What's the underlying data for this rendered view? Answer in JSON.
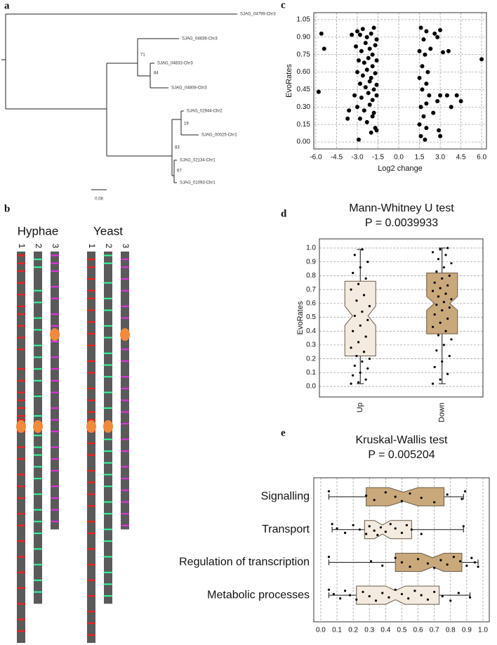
{
  "tree": {
    "label": "a",
    "leaves": [
      "SJAG_04799-Chr3",
      "SJAG_04836-Chr3",
      "SJAG_04833-Chr3",
      "SJAG_04808-Chr3",
      "SJAG_02944-Chr2",
      "SJAG_00025-Chr1",
      "SJAG_02134-Chr1",
      "SJAG_01093-Chr1"
    ],
    "bootstraps": [
      71,
      84,
      19,
      83,
      67
    ],
    "scale_label": "0.08"
  },
  "chromosomes": {
    "label": "b",
    "groups": [
      {
        "name": "Hyphae",
        "chromosomes": [
          {
            "name": "1",
            "color": "#ff1a1a",
            "length": 1.0,
            "centromere": 0.447,
            "bands": [
              0.01,
              0.03,
              0.05,
              0.08,
              0.11,
              0.14,
              0.16,
              0.19,
              0.22,
              0.25,
              0.3,
              0.33,
              0.36,
              0.38,
              0.4,
              0.42,
              0.43,
              0.44,
              0.45,
              0.46,
              0.5,
              0.53,
              0.57,
              0.6,
              0.63,
              0.67,
              0.7,
              0.74,
              0.78,
              0.82,
              0.86,
              0.9,
              0.94,
              0.97
            ]
          },
          {
            "name": "2",
            "color": "#33ff99",
            "length": 0.9,
            "centromere": 0.447,
            "bands": [
              0.02,
              0.04,
              0.1,
              0.13,
              0.17,
              0.2,
              0.24,
              0.27,
              0.3,
              0.33,
              0.37,
              0.42,
              0.47,
              0.5,
              0.52,
              0.55,
              0.58,
              0.62,
              0.66,
              0.69,
              0.72,
              0.76,
              0.8,
              0.84,
              0.87
            ]
          },
          {
            "name": "3",
            "color": "#e033e0",
            "length": 0.71,
            "centromere": 0.212,
            "bands": [
              0.01,
              0.03,
              0.05,
              0.09,
              0.12,
              0.16,
              0.19,
              0.23,
              0.27,
              0.3,
              0.33,
              0.36,
              0.4,
              0.43,
              0.46,
              0.5,
              0.53,
              0.56,
              0.6,
              0.63,
              0.66,
              0.69
            ]
          }
        ]
      },
      {
        "name": "Yeast",
        "chromosomes": [
          {
            "name": "1",
            "color": "#ff1a1a",
            "length": 1.0,
            "centromere": 0.447,
            "bands": [
              0.02,
              0.04,
              0.07,
              0.1,
              0.12,
              0.15,
              0.18,
              0.21,
              0.24,
              0.28,
              0.31,
              0.35,
              0.38,
              0.41,
              0.43,
              0.44,
              0.45,
              0.46,
              0.49,
              0.52,
              0.56,
              0.59,
              0.62,
              0.65,
              0.69,
              0.72,
              0.76,
              0.8,
              0.84,
              0.88,
              0.92,
              0.95,
              0.98
            ]
          },
          {
            "name": "2",
            "color": "#33ff99",
            "length": 0.9,
            "centromere": 0.447,
            "bands": [
              0.01,
              0.03,
              0.08,
              0.12,
              0.15,
              0.19,
              0.22,
              0.26,
              0.29,
              0.32,
              0.36,
              0.4,
              0.48,
              0.51,
              0.54,
              0.57,
              0.6,
              0.64,
              0.67,
              0.71,
              0.74,
              0.78,
              0.82,
              0.85,
              0.88
            ]
          },
          {
            "name": "3",
            "color": "#e033e0",
            "length": 0.71,
            "centromere": 0.212,
            "bands": [
              0.02,
              0.04,
              0.07,
              0.1,
              0.14,
              0.17,
              0.21,
              0.25,
              0.28,
              0.32,
              0.35,
              0.38,
              0.41,
              0.44,
              0.48,
              0.51,
              0.55,
              0.58,
              0.61,
              0.64,
              0.67,
              0.7
            ]
          }
        ]
      }
    ]
  },
  "chart_data": [
    {
      "type": "scatter",
      "label": "c",
      "x_label": "Log2 change",
      "y_label": "EvoRates",
      "color": "#000000",
      "grid": true,
      "xlim": [
        -6.15,
        6.35
      ],
      "ylim": [
        -0.06,
        1.11
      ],
      "xticks": [
        {
          "value": -6,
          "label": "-6.0"
        },
        {
          "value": -4.5,
          "label": "-4.5"
        },
        {
          "value": -3,
          "label": "-3.0"
        },
        {
          "value": -1.5,
          "label": "-1.5"
        },
        {
          "value": 0,
          "label": "0.0"
        },
        {
          "value": 1.5,
          "label": "1.5"
        },
        {
          "value": 3,
          "label": "3.0"
        },
        {
          "value": 4.5,
          "label": "4.5"
        },
        {
          "value": 6,
          "label": "6.0"
        }
      ],
      "yticks": [
        {
          "value": 0,
          "label": "0.00"
        },
        {
          "value": 0.15,
          "label": "0.15"
        },
        {
          "value": 0.3,
          "label": "0.30"
        },
        {
          "value": 0.45,
          "label": "0.45"
        },
        {
          "value": 0.6,
          "label": "0.60"
        },
        {
          "value": 0.75,
          "label": "0.75"
        },
        {
          "value": 0.9,
          "label": "0.90"
        },
        {
          "value": 1.05,
          "label": "1.05"
        }
      ],
      "x": [
        -3.0,
        -2.8,
        -2.6,
        -2.3,
        -2.0,
        -1.8,
        -1.6,
        -3.1,
        -2.7,
        -2.4,
        -2.1,
        -1.9,
        -1.7,
        -2.9,
        -2.5,
        -2.2,
        -1.9,
        -1.6,
        -3.0,
        -2.6,
        -2.3,
        -2.0,
        -1.7,
        -2.8,
        -2.4,
        -2.1,
        -1.8,
        -1.6,
        -3.2,
        -2.7,
        -2.2,
        -1.9,
        -1.6,
        -3.0,
        -2.5,
        -2.1,
        -1.8,
        -2.8,
        -2.3,
        -1.9,
        -1.7,
        -2.0,
        -1.6,
        -2.9,
        -5.6,
        -5.4,
        -5.8,
        -3.6,
        -3.7,
        -3.4,
        1.6,
        2.0,
        2.6,
        3.0,
        1.8,
        2.8,
        1.5,
        1.9,
        2.3,
        3.2,
        3.6,
        1.7,
        2.1,
        1.5,
        2.0,
        1.7,
        2.2,
        1.6,
        2.0,
        2.8,
        3.0,
        1.8,
        2.5,
        1.5,
        2.0,
        1.6,
        1.9,
        2.9,
        3.0,
        3.5,
        3.8,
        4.2,
        4.5,
        6.0
      ],
      "y": [
        0.95,
        0.92,
        0.97,
        0.9,
        0.93,
        0.98,
        0.88,
        0.82,
        0.78,
        0.85,
        0.8,
        0.75,
        0.83,
        0.7,
        0.68,
        0.72,
        0.65,
        0.7,
        0.6,
        0.57,
        0.62,
        0.55,
        0.59,
        0.5,
        0.47,
        0.52,
        0.45,
        0.49,
        0.4,
        0.38,
        0.42,
        0.36,
        0.4,
        0.3,
        0.27,
        0.32,
        0.25,
        0.2,
        0.17,
        0.22,
        0.12,
        0.08,
        0.1,
        0.02,
        0.93,
        0.8,
        0.43,
        0.27,
        0.2,
        0.92,
        0.98,
        0.95,
        0.93,
        0.96,
        0.88,
        0.9,
        0.78,
        0.75,
        0.8,
        0.77,
        0.78,
        0.65,
        0.6,
        0.55,
        0.5,
        0.45,
        0.4,
        0.3,
        0.33,
        0.35,
        0.4,
        0.22,
        0.25,
        0.15,
        0.12,
        0.05,
        0.02,
        0.1,
        0.05,
        0.4,
        0.3,
        0.4,
        0.35,
        0.71
      ]
    },
    {
      "type": "box",
      "label": "d",
      "title": "Mann-Whitney U test",
      "subtitle": "P = 0.0039933",
      "y_label": "EvoRates",
      "grid": true,
      "ylim": [
        -0.076,
        1.066
      ],
      "yticks": [
        {
          "value": 0,
          "label": "0.0"
        },
        0.1,
        0.2,
        0.3,
        0.4,
        0.5,
        0.6,
        0.7,
        0.8,
        0.9,
        {
          "value": 1,
          "label": "1.0"
        }
      ],
      "series": [
        {
          "name": "Up",
          "color": "#f3ebe0",
          "whisker_low": 0.02,
          "q1": 0.22,
          "notch_low": 0.44,
          "median": 0.51,
          "notch_high": 0.58,
          "q3": 0.76,
          "whisker_high": 0.99,
          "points": [
            0.02,
            0.03,
            0.05,
            0.08,
            0.1,
            0.13,
            0.15,
            0.18,
            0.2,
            0.22,
            0.25,
            0.28,
            0.32,
            0.36,
            0.4,
            0.44,
            0.48,
            0.51,
            0.54,
            0.58,
            0.62,
            0.66,
            0.7,
            0.74,
            0.78,
            0.82,
            0.86,
            0.9,
            0.95,
            0.99
          ]
        },
        {
          "name": "Down",
          "color": "#c9a97c",
          "whisker_low": 0.02,
          "q1": 0.38,
          "notch_low": 0.55,
          "median": 0.6,
          "notch_high": 0.65,
          "q3": 0.82,
          "whisker_high": 1.0,
          "points": [
            0.02,
            0.05,
            0.09,
            0.14,
            0.18,
            0.22,
            0.26,
            0.3,
            0.34,
            0.37,
            0.4,
            0.43,
            0.46,
            0.49,
            0.52,
            0.55,
            0.57,
            0.59,
            0.61,
            0.63,
            0.65,
            0.67,
            0.69,
            0.71,
            0.73,
            0.75,
            0.78,
            0.8,
            0.83,
            0.86,
            0.89,
            0.92,
            0.95,
            0.97,
            0.99,
            1.0
          ]
        }
      ]
    },
    {
      "type": "hbox",
      "label": "e",
      "title": "Kruskal-Wallis test",
      "subtitle": "P = 0.005204",
      "grid": true,
      "xlim": [
        -0.043,
        1.039
      ],
      "xticks": [
        {
          "value": 0,
          "label": "0.0"
        },
        0.1,
        0.2,
        0.3,
        0.4,
        0.5,
        0.6,
        0.7,
        0.8,
        0.9,
        {
          "value": 1,
          "label": "1.0"
        }
      ],
      "series": [
        {
          "name": "Signalling",
          "color": "#c9a97c",
          "whisker_low": 0.05,
          "q1": 0.28,
          "notch_low": 0.42,
          "median": 0.51,
          "notch_high": 0.6,
          "q3": 0.76,
          "whisker_high": 0.88,
          "points": [
            0.05,
            0.28,
            0.33,
            0.4,
            0.46,
            0.5,
            0.55,
            0.62,
            0.7,
            0.78,
            0.87,
            0.89
          ]
        },
        {
          "name": "Transport",
          "color": "#f3ebe0",
          "whisker_low": 0.07,
          "q1": 0.27,
          "notch_low": 0.33,
          "median": 0.38,
          "notch_high": 0.43,
          "q3": 0.56,
          "whisker_high": 0.88,
          "points": [
            0.07,
            0.1,
            0.15,
            0.2,
            0.24,
            0.28,
            0.3,
            0.33,
            0.35,
            0.37,
            0.4,
            0.43,
            0.46,
            0.5,
            0.53,
            0.56,
            0.62,
            0.88
          ]
        },
        {
          "name": "Regulation of transcription",
          "color": "#c9a97c",
          "whisker_low": 0.05,
          "q1": 0.46,
          "notch_low": 0.62,
          "median": 0.69,
          "notch_high": 0.76,
          "q3": 0.87,
          "whisker_high": 0.97,
          "points": [
            0.05,
            0.31,
            0.38,
            0.46,
            0.5,
            0.55,
            0.6,
            0.66,
            0.7,
            0.74,
            0.78,
            0.82,
            0.86,
            0.9,
            0.93,
            0.95,
            0.97
          ]
        },
        {
          "name": "Metabolic processes",
          "color": "#f3ebe0",
          "whisker_low": 0.05,
          "q1": 0.22,
          "notch_low": 0.4,
          "median": 0.46,
          "notch_high": 0.52,
          "q3": 0.73,
          "whisker_high": 0.92,
          "points": [
            0.05,
            0.08,
            0.12,
            0.15,
            0.18,
            0.22,
            0.26,
            0.3,
            0.34,
            0.38,
            0.42,
            0.46,
            0.5,
            0.54,
            0.58,
            0.62,
            0.66,
            0.7,
            0.75,
            0.8,
            0.85,
            0.92
          ]
        }
      ]
    }
  ]
}
